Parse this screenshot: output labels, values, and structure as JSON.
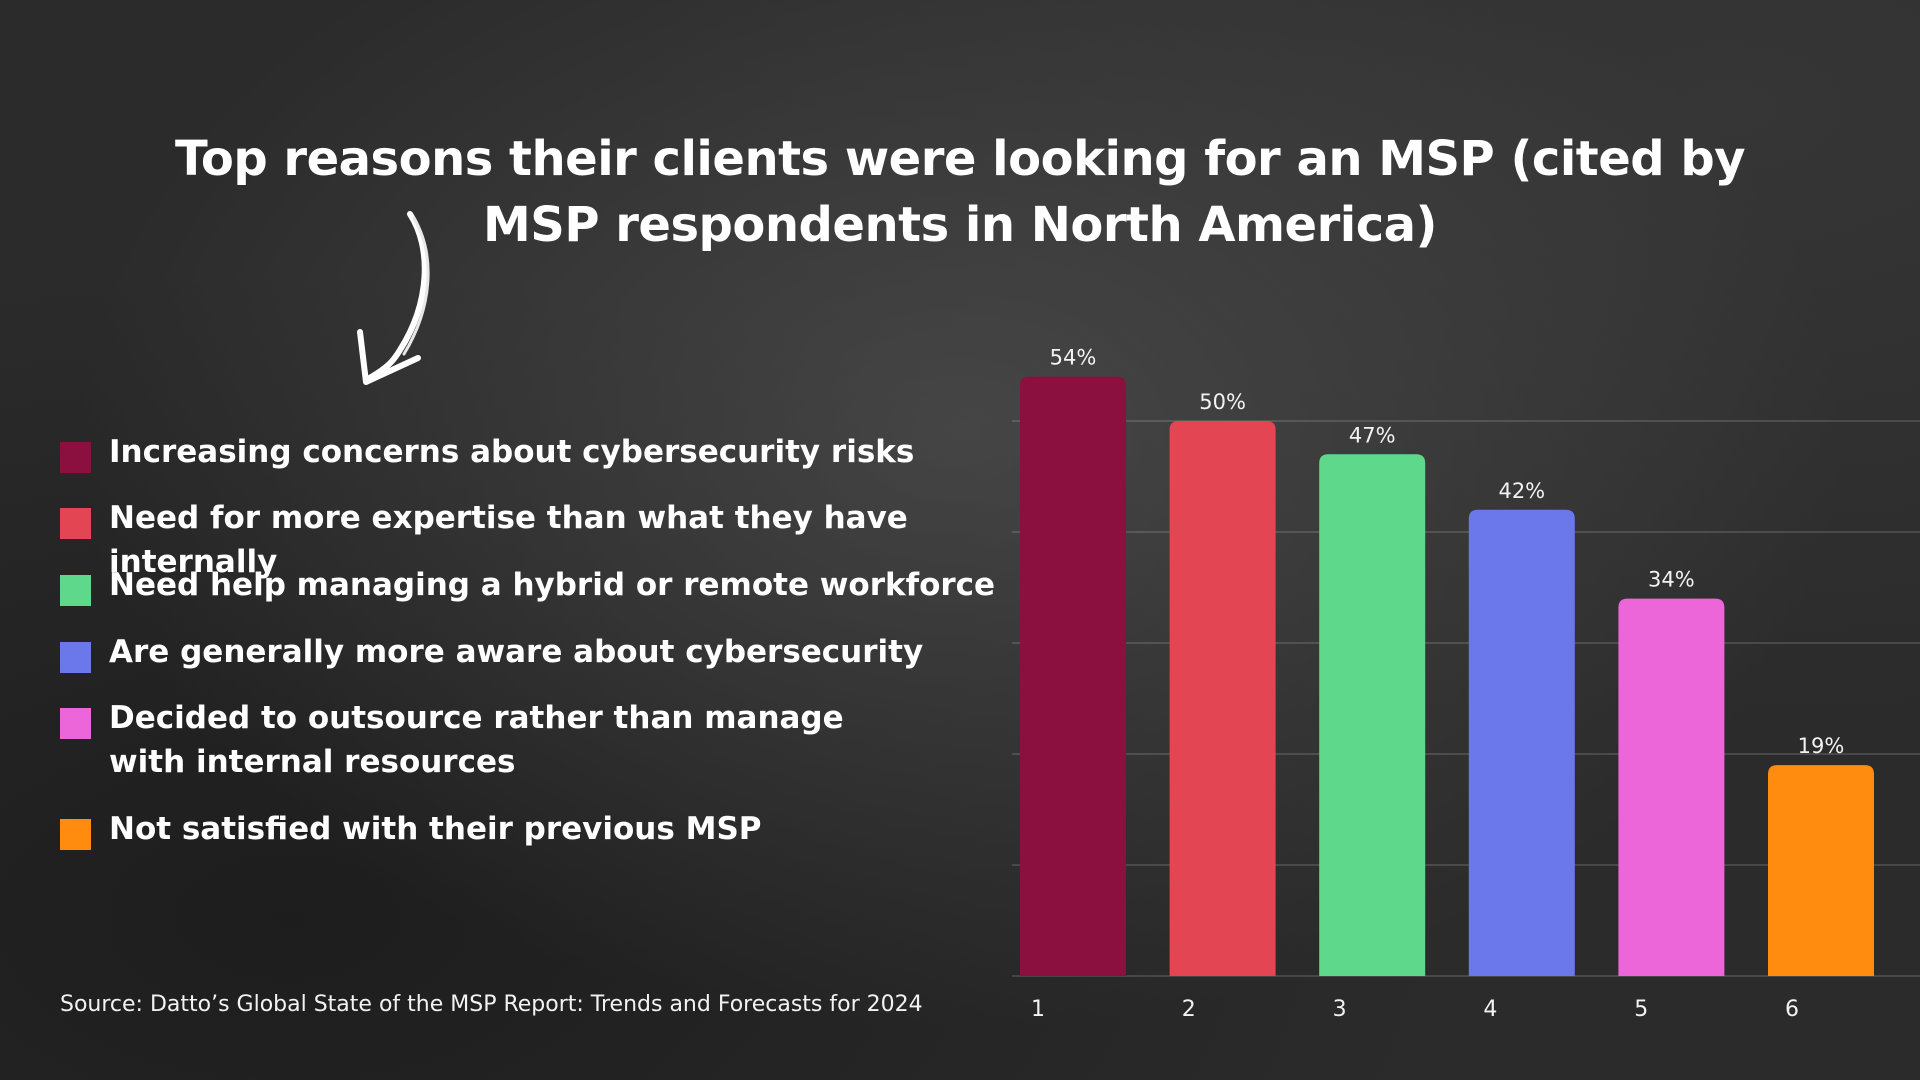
{
  "title_line1": "Top reasons their clients were looking for an MSP (cited by",
  "title_line2": "MSP respondents in North America)",
  "source": "Source: Datto’s Global State of the MSP Report: Trends and Forecasts for 2024",
  "legend": [
    {
      "label": "Increasing concerns about cybersecurity risks",
      "color": "#8b1040"
    },
    {
      "label": "Need for more expertise than what they have internally",
      "color": "#e34552"
    },
    {
      "label": "Need help managing a hybrid or remote workforce",
      "color": "#5ed98c"
    },
    {
      "label": "Are generally more aware about cybersecurity",
      "color": "#6a78ec"
    },
    {
      "label": "Decided to outsource rather than manage\nwith internal resources",
      "color": "#ec66d9"
    },
    {
      "label": "Not satisfied with their previous MSP",
      "color": "#ff8c0e"
    }
  ],
  "chart_data": {
    "type": "bar",
    "title": "Top reasons their clients were looking for an MSP (cited by MSP respondents in North America)",
    "categories": [
      "1",
      "2",
      "3",
      "4",
      "5",
      "6"
    ],
    "values": [
      54,
      50,
      47,
      42,
      34,
      19
    ],
    "value_labels": [
      "54%",
      "50%",
      "47%",
      "42%",
      "34%",
      "19%"
    ],
    "colors": [
      "#8b1040",
      "#e34552",
      "#5ed98c",
      "#6a78ec",
      "#ec66d9",
      "#ff8c0e"
    ],
    "ylim": [
      0,
      55
    ],
    "grid": true,
    "legend_position": "left"
  }
}
